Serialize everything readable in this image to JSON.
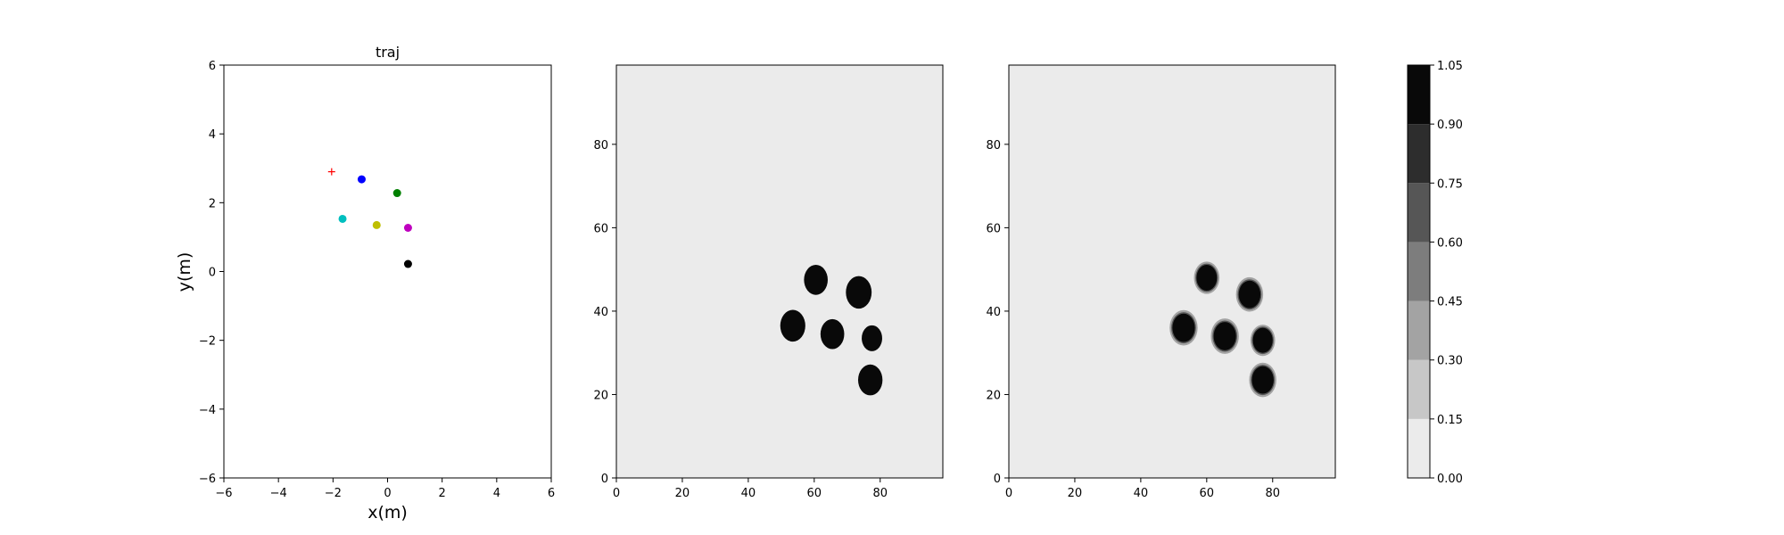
{
  "chart_data": [
    {
      "type": "scatter",
      "title": "traj",
      "xlabel": "x(m)",
      "ylabel": "y(m)",
      "xlim": [
        -6,
        6
      ],
      "ylim": [
        -6,
        6
      ],
      "xticks": [
        -6,
        -4,
        -2,
        0,
        2,
        4,
        6
      ],
      "yticks": [
        -6,
        -4,
        -2,
        0,
        2,
        4,
        6
      ],
      "xtick_labels": [
        "−6",
        "−4",
        "−2",
        "0",
        "2",
        "4",
        "6"
      ],
      "ytick_labels": [
        "−6",
        "−4",
        "−2",
        "0",
        "2",
        "4",
        "6"
      ],
      "grid": false,
      "series": [
        {
          "marker": "plus",
          "color": "#ff0000",
          "x": [
            -2.05
          ],
          "y": [
            2.9
          ]
        },
        {
          "marker": "circle",
          "color": "#0000ff",
          "x": [
            -0.95
          ],
          "y": [
            2.68
          ]
        },
        {
          "marker": "circle",
          "color": "#008000",
          "x": [
            0.35
          ],
          "y": [
            2.28
          ]
        },
        {
          "marker": "circle",
          "color": "#00bfbf",
          "x": [
            -1.65
          ],
          "y": [
            1.53
          ]
        },
        {
          "marker": "circle",
          "color": "#bfbf00",
          "x": [
            -0.4
          ],
          "y": [
            1.35
          ]
        },
        {
          "marker": "circle",
          "color": "#bf00bf",
          "x": [
            0.75
          ],
          "y": [
            1.27
          ]
        },
        {
          "marker": "circle",
          "color": "#000000",
          "x": [
            0.75
          ],
          "y": [
            0.22
          ]
        }
      ]
    },
    {
      "type": "heatmap",
      "xlim": [
        0,
        99
      ],
      "ylim": [
        0,
        99
      ],
      "xticks": [
        0,
        20,
        40,
        60,
        80
      ],
      "yticks": [
        0,
        20,
        40,
        60,
        80
      ],
      "xtick_labels": [
        "0",
        "20",
        "40",
        "60",
        "80"
      ],
      "ytick_labels": [
        "0",
        "20",
        "40",
        "60",
        "80"
      ],
      "background_value": 0.05,
      "blobs": [
        {
          "x": 60.5,
          "y": 47.5,
          "r": 3.6,
          "value": 1.0
        },
        {
          "x": 73.5,
          "y": 44.5,
          "r": 3.9,
          "value": 1.0
        },
        {
          "x": 53.5,
          "y": 36.5,
          "r": 3.8,
          "value": 1.0
        },
        {
          "x": 65.5,
          "y": 34.5,
          "r": 3.6,
          "value": 1.0
        },
        {
          "x": 77.5,
          "y": 33.5,
          "r": 3.1,
          "value": 1.0
        },
        {
          "x": 77.0,
          "y": 23.5,
          "r": 3.7,
          "value": 1.0
        }
      ]
    },
    {
      "type": "heatmap",
      "xlim": [
        0,
        99
      ],
      "ylim": [
        0,
        99
      ],
      "xticks": [
        0,
        20,
        40,
        60,
        80
      ],
      "yticks": [
        0,
        20,
        40,
        60,
        80
      ],
      "xtick_labels": [
        "0",
        "20",
        "40",
        "60",
        "80"
      ],
      "ytick_labels": [
        "0",
        "20",
        "40",
        "60",
        "80"
      ],
      "background_value": 0.05,
      "blobs": [
        {
          "x": 60.0,
          "y": 48.0,
          "r": 3.1,
          "value": 1.0
        },
        {
          "x": 73.0,
          "y": 44.0,
          "r": 3.3,
          "value": 1.0
        },
        {
          "x": 53.0,
          "y": 36.0,
          "r": 3.4,
          "value": 1.0
        },
        {
          "x": 65.5,
          "y": 34.0,
          "r": 3.4,
          "value": 1.0
        },
        {
          "x": 77.0,
          "y": 33.0,
          "r": 3.0,
          "value": 1.0
        },
        {
          "x": 77.0,
          "y": 23.5,
          "r": 3.3,
          "value": 1.0
        }
      ]
    }
  ],
  "colorbar": {
    "levels": [
      0.0,
      0.15,
      0.3,
      0.45,
      0.6,
      0.75,
      0.9,
      1.05
    ],
    "tick_labels": [
      "0.00",
      "0.15",
      "0.30",
      "0.45",
      "0.60",
      "0.75",
      "0.90",
      "1.05"
    ],
    "colors": [
      "#ebebeb",
      "#c7c7c7",
      "#a3a3a3",
      "#7d7d7d",
      "#565656",
      "#2d2d2d",
      "#090909"
    ]
  }
}
